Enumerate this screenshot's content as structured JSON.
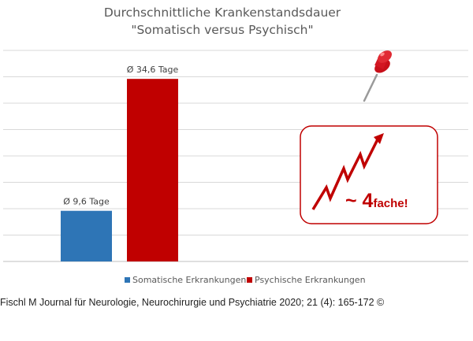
{
  "chart_data": {
    "type": "bar",
    "title": [
      "Durchschnittliche Krankenstandsdauer",
      "\"Somatisch versus Psychisch\""
    ],
    "series": [
      {
        "name": "Somatische Erkrankungen",
        "value": 9.6,
        "label": "Ø 9,6 Tage",
        "color": "#2e75b6"
      },
      {
        "name": "Psychische Erkrankungen",
        "value": 34.6,
        "label": "Ø 34,6 Tage",
        "color": "#c00000"
      }
    ],
    "ylim": [
      0,
      40
    ],
    "grid": true,
    "legend_position": "bottom",
    "annotation": {
      "tilde": "~ 4",
      "suffix": "fache!"
    }
  },
  "source": "Fischl M Journal für Neurologie, Neurochirurgie und Psychiatrie 2020; 21 (4): 165-172 ©"
}
